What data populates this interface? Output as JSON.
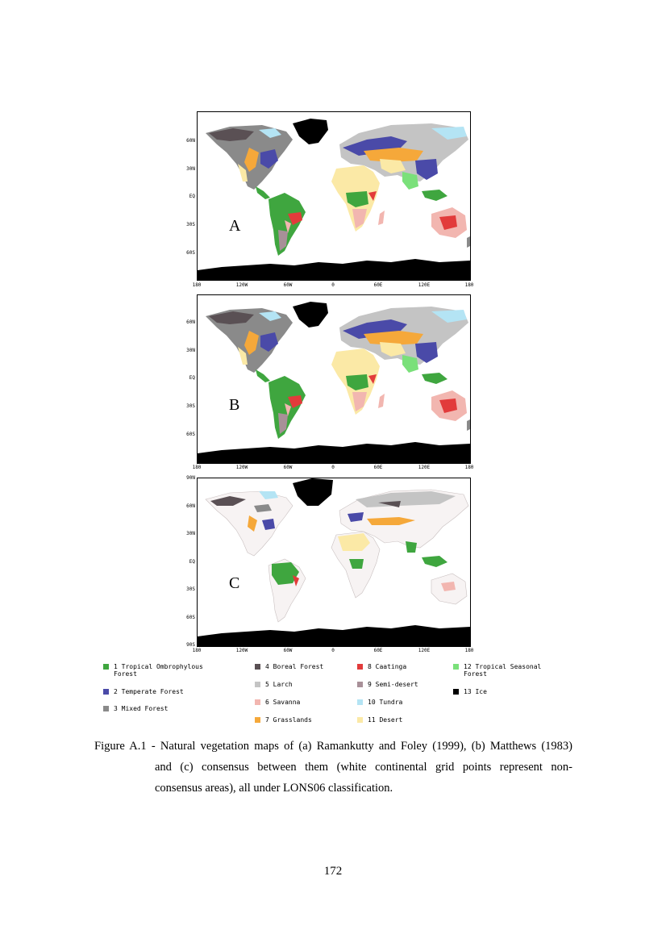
{
  "panels": [
    {
      "letter": "A",
      "y_ticks": [
        "60N",
        "30N",
        "EQ",
        "30S",
        "60S"
      ]
    },
    {
      "letter": "B",
      "y_ticks": [
        "60N",
        "30N",
        "EQ",
        "30S",
        "60S"
      ]
    },
    {
      "letter": "C",
      "y_ticks": [
        "90N",
        "60N",
        "30N",
        "EQ",
        "30S",
        "60S",
        "90S"
      ]
    }
  ],
  "x_ticks": [
    "180",
    "120W",
    "60W",
    "0",
    "60E",
    "120E",
    "180"
  ],
  "legend": [
    {
      "num": "1",
      "label": "1 Tropical Ombrophylous\nForest",
      "color": "#3fa63f"
    },
    {
      "num": "2",
      "label": "2 Temperate Forest",
      "color": "#4a4aa8"
    },
    {
      "num": "3",
      "label": "3 Mixed Forest",
      "color": "#8a8a8a"
    },
    {
      "num": "4",
      "label": "4 Boreal Forest",
      "color": "#5a5054"
    },
    {
      "num": "5",
      "label": "5 Larch",
      "color": "#c4c4c4"
    },
    {
      "num": "6",
      "label": "6 Savanna",
      "color": "#f2b6b0"
    },
    {
      "num": "7",
      "label": "7 Grasslands",
      "color": "#f5a83a"
    },
    {
      "num": "8",
      "label": "8 Caatinga",
      "color": "#e23b3b"
    },
    {
      "num": "9",
      "label": "9 Semi-desert",
      "color": "#a89098"
    },
    {
      "num": "10",
      "label": "10 Tundra",
      "color": "#b4e4f4"
    },
    {
      "num": "11",
      "label": "11 Desert",
      "color": "#fbe9a6"
    },
    {
      "num": "12",
      "label": "12 Tropical Seasonal\nForest",
      "color": "#7ae07a"
    },
    {
      "num": "13",
      "label": "13 Ice",
      "color": "#000000"
    }
  ],
  "caption": {
    "line1": "Figure A.1 - Natural vegetation maps of (a) Ramankutty and Foley (1999), (b) Matthews (1983)",
    "line2": "and (c) consensus between them (white continental grid points represent non-",
    "line3": "consensus areas), all under LONS06 classification."
  },
  "page_number": "172"
}
